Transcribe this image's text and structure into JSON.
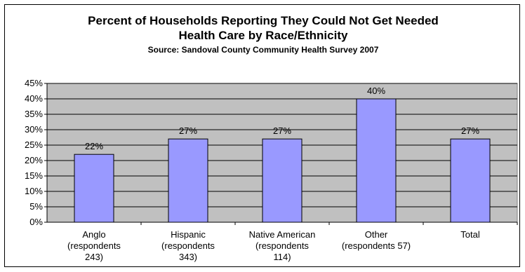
{
  "chart_data": {
    "type": "bar",
    "title_lines": [
      "Percent of Households Reporting They Could Not Get Needed",
      "Health Care by Race/Ethnicity"
    ],
    "subtitle": "Source: Sandoval County Community Health Survey 2007",
    "categories": [
      [
        "Anglo",
        "(respondents",
        "243)"
      ],
      [
        "Hispanic",
        "(respondents",
        "343)"
      ],
      [
        "Native American",
        "(respondents",
        "114)"
      ],
      [
        "Other",
        "(respondents  57)"
      ],
      [
        "Total"
      ]
    ],
    "values": [
      22,
      27,
      27,
      40,
      27
    ],
    "data_labels": [
      "22%",
      "27%",
      "27%",
      "40%",
      "27%"
    ],
    "y_ticks": [
      "0%",
      "5%",
      "10%",
      "15%",
      "20%",
      "25%",
      "30%",
      "35%",
      "40%",
      "45%"
    ],
    "ylim": [
      0,
      45
    ],
    "y_step": 5,
    "grid": true,
    "legend": "none",
    "colors": {
      "bar_fill": "#9999ff",
      "bar_stroke": "#000000",
      "plot_bg": "#c0c0c0",
      "grid": "#000000"
    }
  }
}
